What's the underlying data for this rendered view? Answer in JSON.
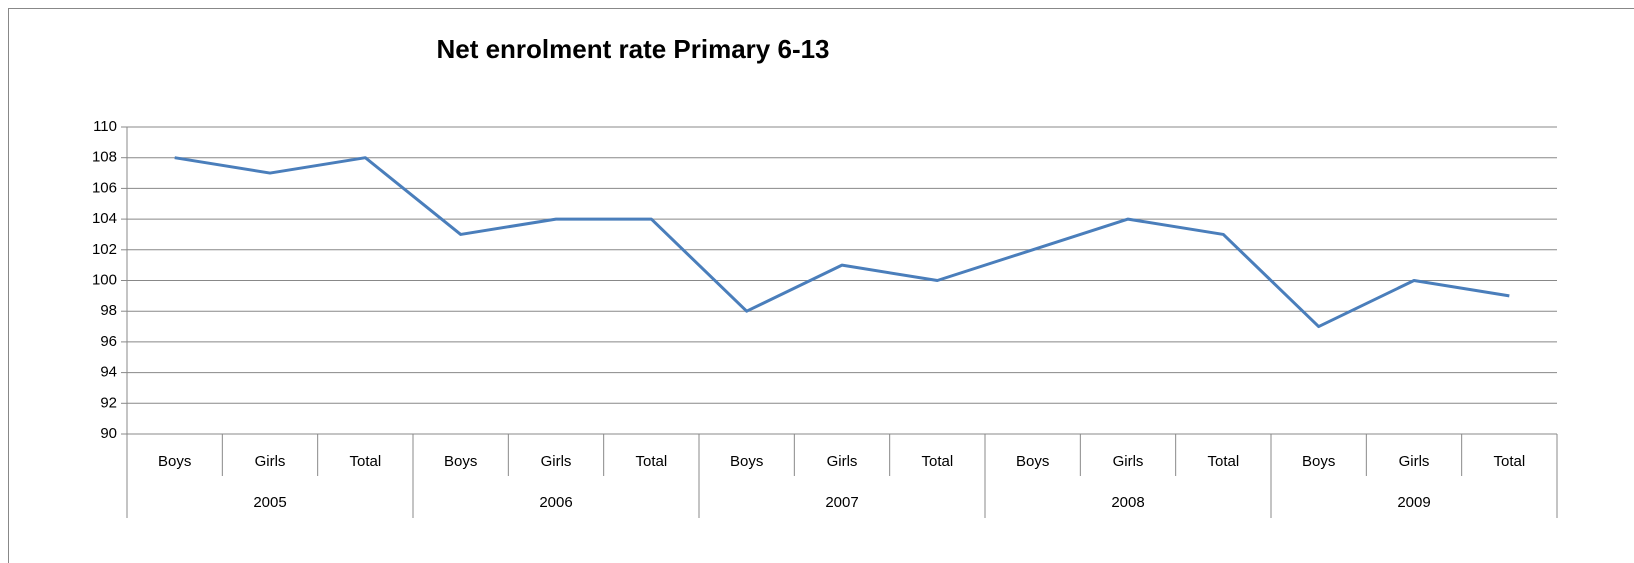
{
  "chart_data": {
    "type": "line",
    "title": "Net enrolment rate Primary 6-13",
    "categories": [
      "Boys",
      "Girls",
      "Total",
      "Boys",
      "Girls",
      "Total",
      "Boys",
      "Girls",
      "Total",
      "Boys",
      "Girls",
      "Total",
      "Boys",
      "Girls",
      "Total"
    ],
    "category_groups": [
      "2005",
      "2006",
      "2007",
      "2008",
      "2009"
    ],
    "values": [
      108,
      107,
      108,
      103,
      104,
      104,
      98,
      101,
      100,
      102,
      104,
      103,
      97,
      100,
      99
    ],
    "color": "#4a7ebb",
    "ylim": [
      90,
      110
    ],
    "yticks": [
      90,
      92,
      94,
      96,
      98,
      100,
      102,
      104,
      106,
      108,
      110
    ],
    "grid": true
  }
}
